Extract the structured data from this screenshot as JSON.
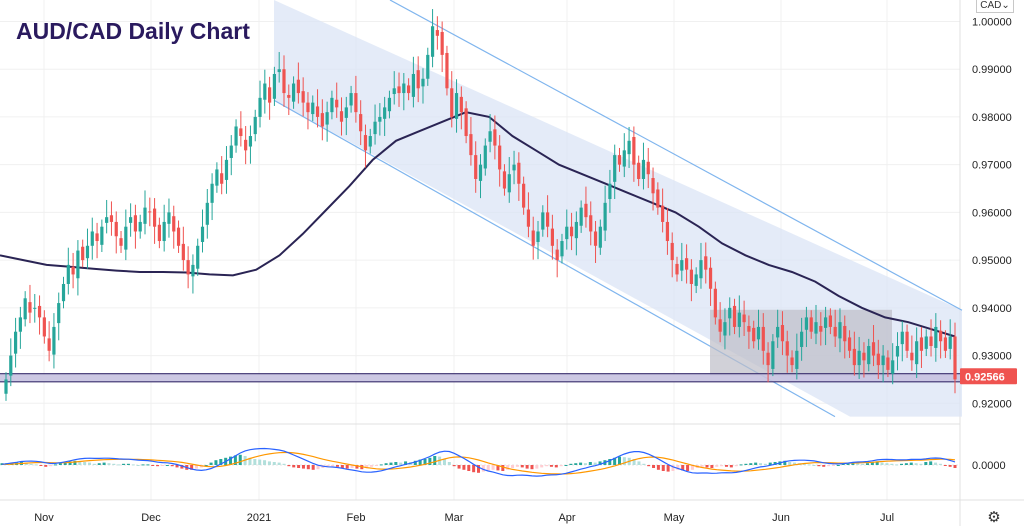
{
  "chart_data": {
    "type": "candlestick",
    "title": "AUD/CAD Daily Chart",
    "currency": "CAD",
    "xlabels": [
      "Nov",
      "Dec",
      "2021",
      "Feb",
      "Mar",
      "Apr",
      "May",
      "Jun",
      "Jul"
    ],
    "ylim": [
      0.9165,
      1.0045
    ],
    "yticks": [
      "1.00000",
      "0.99000",
      "0.98000",
      "0.97000",
      "0.96000",
      "0.95000",
      "0.94000",
      "0.93000",
      "0.92000"
    ],
    "last_price": "0.92566",
    "grid": true,
    "closes": [
      0.925,
      0.93,
      0.935,
      0.938,
      0.942,
      0.939,
      0.94,
      0.938,
      0.934,
      0.931,
      0.936,
      0.941,
      0.945,
      0.949,
      0.947,
      0.952,
      0.95,
      0.953,
      0.956,
      0.954,
      0.957,
      0.959,
      0.958,
      0.955,
      0.953,
      0.957,
      0.959,
      0.956,
      0.958,
      0.961,
      0.96,
      0.957,
      0.954,
      0.958,
      0.96,
      0.956,
      0.953,
      0.95,
      0.947,
      0.949,
      0.953,
      0.957,
      0.962,
      0.966,
      0.969,
      0.966,
      0.971,
      0.974,
      0.978,
      0.976,
      0.973,
      0.976,
      0.98,
      0.984,
      0.987,
      0.983,
      0.989,
      0.99,
      0.985,
      0.984,
      0.987,
      0.985,
      0.983,
      0.981,
      0.983,
      0.98,
      0.978,
      0.981,
      0.984,
      0.982,
      0.979,
      0.982,
      0.985,
      0.981,
      0.977,
      0.973,
      0.976,
      0.979,
      0.98,
      0.982,
      0.984,
      0.986,
      0.985,
      0.987,
      0.985,
      0.989,
      0.986,
      0.988,
      0.993,
      0.999,
      0.997,
      0.993,
      0.986,
      0.98,
      0.985,
      0.981,
      0.976,
      0.972,
      0.967,
      0.97,
      0.974,
      0.977,
      0.974,
      0.969,
      0.965,
      0.968,
      0.97,
      0.966,
      0.961,
      0.957,
      0.953,
      0.956,
      0.96,
      0.957,
      0.953,
      0.95,
      0.954,
      0.957,
      0.955,
      0.958,
      0.961,
      0.959,
      0.956,
      0.953,
      0.957,
      0.962,
      0.966,
      0.972,
      0.97,
      0.973,
      0.975,
      0.97,
      0.967,
      0.971,
      0.968,
      0.964,
      0.961,
      0.958,
      0.954,
      0.95,
      0.947,
      0.95,
      0.948,
      0.945,
      0.947,
      0.95,
      0.948,
      0.944,
      0.938,
      0.935,
      0.937,
      0.94,
      0.936,
      0.939,
      0.937,
      0.935,
      0.933,
      0.936,
      0.931,
      0.928,
      0.933,
      0.936,
      0.933,
      0.93,
      0.928,
      0.931,
      0.935,
      0.938,
      0.935,
      0.937,
      0.935,
      0.938,
      0.936,
      0.934,
      0.937,
      0.933,
      0.931,
      0.928,
      0.931,
      0.929,
      0.932,
      0.93,
      0.928,
      0.93,
      0.927,
      0.929,
      0.932,
      0.935,
      0.931,
      0.929,
      0.933,
      0.931,
      0.934,
      0.932,
      0.936,
      0.933,
      0.931,
      0.934,
      0.925
    ],
    "ma": [
      0.951,
      0.95,
      0.949,
      0.9486,
      0.9482,
      0.9478,
      0.9475,
      0.9475,
      0.9474,
      0.947,
      0.9468,
      0.948,
      0.951,
      0.9555,
      0.9605,
      0.9655,
      0.971,
      0.975,
      0.977,
      0.979,
      0.981,
      0.98,
      0.976,
      0.973,
      0.97,
      0.968,
      0.966,
      0.964,
      0.962,
      0.96,
      0.957,
      0.9535,
      0.951,
      0.949,
      0.9475,
      0.9455,
      0.9425,
      0.94,
      0.938,
      0.937,
      0.9355,
      0.934
    ],
    "ma_start": "Oct 24",
    "channel": {
      "upper": [
        [
          0.9885,
          1.0045
        ],
        [
          0.9395,
          0.929
        ]
      ],
      "lower": [
        [
          0.9835,
          0.965
        ],
        [
          0.9172,
          0.9172
        ]
      ]
    },
    "range_box": [
      0.9258,
      0.9396
    ],
    "support_band": [
      0.9245,
      0.9262
    ],
    "macd_hist": [
      0.3,
      0.3,
      0.4,
      0.4,
      0.5,
      0.3,
      0.2,
      0.1,
      -0.1,
      -0.3,
      -0.2,
      0.1,
      0.4,
      0.5,
      0.6,
      0.7,
      0.6,
      0.5,
      0.4,
      0.2,
      0.3,
      0.4,
      0.3,
      0.2,
      0.1,
      0.2,
      0.2,
      0.1,
      0.0,
      0.1,
      0.1,
      -0.1,
      -0.2,
      -0.1,
      0.0,
      -0.2,
      -0.4,
      -0.6,
      -0.8,
      -0.8,
      -0.6,
      -0.4,
      0.0,
      0.4,
      0.8,
      1.0,
      1.2,
      1.4,
      1.6,
      1.7,
      1.5,
      1.2,
      1.0,
      0.9,
      0.8,
      0.6,
      0.5,
      0.4,
      0.2,
      -0.2,
      -0.4,
      -0.5,
      -0.6,
      -0.7,
      -0.8,
      -0.7,
      -0.5,
      -0.3,
      -0.2,
      -0.3,
      -0.5,
      -0.6,
      -0.5,
      -0.6,
      -0.7,
      -0.5,
      -0.3,
      -0.1,
      0.1,
      0.3,
      0.4,
      0.5,
      0.4,
      0.6,
      0.5,
      0.7,
      0.9,
      1.0,
      1.2,
      1.5,
      1.4,
      1.0,
      0.5,
      -0.2,
      -0.6,
      -0.8,
      -1.0,
      -1.2,
      -1.3,
      -1.1,
      -0.9,
      -0.8,
      -0.9,
      -1.0,
      -0.8,
      -0.5,
      -0.3,
      -0.4,
      -0.6,
      -0.7,
      -0.6,
      -0.4,
      -0.2,
      -0.3,
      -0.4,
      -0.2,
      0.0,
      0.2,
      0.3,
      0.4,
      0.3,
      0.5,
      0.4,
      0.6,
      0.8,
      1.0,
      1.2,
      1.4,
      1.3,
      1.2,
      1.0,
      0.6,
      0.2,
      -0.2,
      -0.5,
      -0.8,
      -1.0,
      -1.1,
      -1.0,
      -0.8,
      -0.9,
      -1.0,
      -0.8,
      -0.5,
      -0.3,
      -0.4,
      -0.5,
      -0.3,
      -0.2,
      -0.3,
      -0.4,
      -0.2,
      0.1,
      0.2,
      0.3,
      0.4,
      0.3,
      0.2,
      0.4,
      0.5,
      0.6,
      0.7,
      0.5,
      0.4,
      0.3,
      0.2,
      0.1,
      0.0,
      -0.2,
      -0.3,
      -0.2,
      -0.1,
      0.0,
      0.2,
      0.3,
      0.4,
      0.3,
      0.2,
      0.3,
      0.5,
      0.6,
      0.4,
      0.3,
      0.2,
      0.1,
      0.2,
      0.3,
      0.4,
      0.3,
      0.2,
      0.5,
      0.6,
      0.4,
      0.2,
      -0.1,
      -0.3,
      -0.5
    ],
    "macd_yticks": [
      "0.0000"
    ]
  },
  "colors": {
    "bull": "#26a69a",
    "bear": "#ef5350",
    "channel_fill": "#dbe4f5",
    "channel_line": "#7fb5ee",
    "ma_line": "#2a2454",
    "range_fill": "#bdbdc8",
    "support_fill": "#c7c2e0",
    "support_line": "#3a2f6e",
    "price_tag": "#ef5350",
    "macd_line": "#2962ff",
    "signal_line": "#ff9800",
    "hist_pos_strong": "#26a69a",
    "hist_pos_weak": "#b2dfdb",
    "hist_neg_strong": "#ef5350",
    "hist_neg_weak": "#ffcdd2"
  },
  "ui": {
    "currency_button": "CAD",
    "settings_icon": "gear-icon"
  }
}
